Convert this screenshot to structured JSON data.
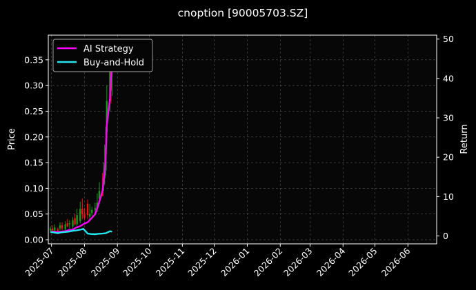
{
  "chart_data": {
    "type": "line",
    "title": "cnoption [90005703.SZ]",
    "ylabel": "Price",
    "y2label": "Return",
    "ylim": [
      -0.008,
      0.398
    ],
    "y2lim": [
      -2,
      51
    ],
    "yticks": [
      0.0,
      0.05,
      0.1,
      0.15,
      0.2,
      0.25,
      0.3,
      0.35
    ],
    "yticklabels": [
      "0.00",
      "0.05",
      "0.10",
      "0.15",
      "0.20",
      "0.25",
      "0.30",
      "0.35"
    ],
    "y2ticks": [
      0,
      10,
      20,
      30,
      40,
      50
    ],
    "y2ticklabels": [
      "0",
      "10",
      "20",
      "30",
      "40",
      "50"
    ],
    "xlim": [
      "2025-06-28",
      "2026-06-28"
    ],
    "xticks": [
      "2025-07-01",
      "2025-08-01",
      "2025-09-01",
      "2025-10-01",
      "2025-11-01",
      "2025-12-01",
      "2026-01-01",
      "2026-02-01",
      "2026-03-01",
      "2026-04-01",
      "2026-05-01",
      "2026-06-01"
    ],
    "xticklabels": [
      "2025-07",
      "2025-08",
      "2025-09",
      "2025-10",
      "2025-11",
      "2025-12",
      "2026-01",
      "2026-02",
      "2026-03",
      "2026-04",
      "2026-05",
      "2026-06"
    ],
    "grid": true,
    "legend_position": "top-left",
    "colors": {
      "ai": "#ff00ff",
      "bh": "#22e5ee",
      "up": "#1a9a1a",
      "down": "#ff1010",
      "axis": "#ffffff",
      "background": "#000000",
      "plot_background": "#070707"
    },
    "series": [
      {
        "name": "AI Strategy",
        "axis": "right",
        "x": [
          "2025-06-30",
          "2025-07-03",
          "2025-07-07",
          "2025-07-10",
          "2025-07-14",
          "2025-07-17",
          "2025-07-21",
          "2025-07-24",
          "2025-07-28",
          "2025-07-31",
          "2025-08-04",
          "2025-08-07",
          "2025-08-11",
          "2025-08-14",
          "2025-08-18",
          "2025-08-19",
          "2025-08-20",
          "2025-08-21",
          "2025-08-22",
          "2025-08-25",
          "2025-08-26",
          "2025-08-27"
        ],
        "values": [
          1.0,
          1.1,
          1.0,
          1.1,
          1.2,
          1.5,
          1.6,
          2.1,
          2.5,
          3.0,
          3.5,
          4.3,
          5.5,
          7.8,
          11.5,
          14.0,
          16.5,
          20.0,
          28.0,
          35.0,
          40.0,
          43.0
        ]
      },
      {
        "name": "Buy-and-Hold",
        "axis": "right",
        "x": [
          "2025-06-30",
          "2025-07-03",
          "2025-07-07",
          "2025-07-10",
          "2025-07-14",
          "2025-07-17",
          "2025-07-21",
          "2025-07-24",
          "2025-07-28",
          "2025-07-31",
          "2025-08-04",
          "2025-08-07",
          "2025-08-11",
          "2025-08-14",
          "2025-08-18",
          "2025-08-21",
          "2025-08-25",
          "2025-08-27"
        ],
        "values": [
          1.0,
          0.9,
          0.7,
          0.9,
          1.0,
          1.1,
          1.3,
          1.4,
          1.6,
          1.8,
          0.6,
          0.5,
          0.45,
          0.55,
          0.6,
          0.7,
          1.2,
          1.1
        ]
      }
    ],
    "candles": {
      "axis": "left",
      "x": [
        "2025-06-30",
        "2025-07-02",
        "2025-07-04",
        "2025-07-07",
        "2025-07-09",
        "2025-07-11",
        "2025-07-14",
        "2025-07-16",
        "2025-07-18",
        "2025-07-21",
        "2025-07-23",
        "2025-07-25",
        "2025-07-28",
        "2025-07-30",
        "2025-08-01",
        "2025-08-04",
        "2025-08-06",
        "2025-08-08",
        "2025-08-11",
        "2025-08-13",
        "2025-08-15",
        "2025-08-18",
        "2025-08-19",
        "2025-08-20",
        "2025-08-21",
        "2025-08-22",
        "2025-08-25",
        "2025-08-26",
        "2025-08-27"
      ],
      "open": [
        0.018,
        0.022,
        0.018,
        0.02,
        0.022,
        0.028,
        0.02,
        0.032,
        0.03,
        0.026,
        0.042,
        0.03,
        0.036,
        0.06,
        0.05,
        0.07,
        0.045,
        0.052,
        0.058,
        0.06,
        0.08,
        0.1,
        0.105,
        0.12,
        0.135,
        0.21,
        0.27,
        0.36,
        0.33
      ],
      "high": [
        0.026,
        0.028,
        0.03,
        0.024,
        0.034,
        0.034,
        0.036,
        0.04,
        0.038,
        0.044,
        0.05,
        0.06,
        0.074,
        0.08,
        0.062,
        0.078,
        0.07,
        0.064,
        0.072,
        0.09,
        0.112,
        0.13,
        0.15,
        0.185,
        0.22,
        0.3,
        0.38,
        0.385,
        0.36
      ],
      "low": [
        0.014,
        0.016,
        0.014,
        0.012,
        0.018,
        0.018,
        0.018,
        0.024,
        0.022,
        0.02,
        0.028,
        0.026,
        0.032,
        0.04,
        0.038,
        0.04,
        0.04,
        0.046,
        0.048,
        0.054,
        0.07,
        0.088,
        0.095,
        0.108,
        0.125,
        0.19,
        0.25,
        0.265,
        0.28
      ],
      "close": [
        0.022,
        0.018,
        0.024,
        0.016,
        0.028,
        0.022,
        0.03,
        0.026,
        0.032,
        0.038,
        0.03,
        0.048,
        0.06,
        0.05,
        0.042,
        0.048,
        0.05,
        0.058,
        0.062,
        0.072,
        0.095,
        0.085,
        0.12,
        0.135,
        0.18,
        0.27,
        0.36,
        0.29,
        0.355
      ]
    }
  }
}
